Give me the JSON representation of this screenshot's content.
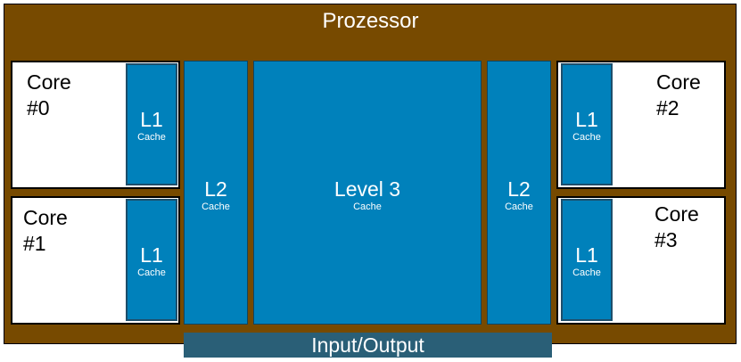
{
  "diagram": {
    "title": "Prozessor",
    "cores": [
      {
        "label": "Core\n#0",
        "l1_label": "L1",
        "l1_sub": "Cache"
      },
      {
        "label": "Core\n#1",
        "l1_label": "L1",
        "l1_sub": "Cache"
      },
      {
        "label": "Core\n#2",
        "l1_label": "L1",
        "l1_sub": "Cache"
      },
      {
        "label": "Core\n#3",
        "l1_label": "L1",
        "l1_sub": "Cache"
      }
    ],
    "l2_left": {
      "label": "L2",
      "sub": "Cache"
    },
    "l3": {
      "label": "Level 3",
      "sub": "Cache"
    },
    "l2_right": {
      "label": "L2",
      "sub": "Cache"
    },
    "io": {
      "label": "Input/Output"
    }
  },
  "colors": {
    "processor": "#774a00",
    "cache": "#0081bb",
    "io": "#2a5f77",
    "core": "#ffffff"
  }
}
